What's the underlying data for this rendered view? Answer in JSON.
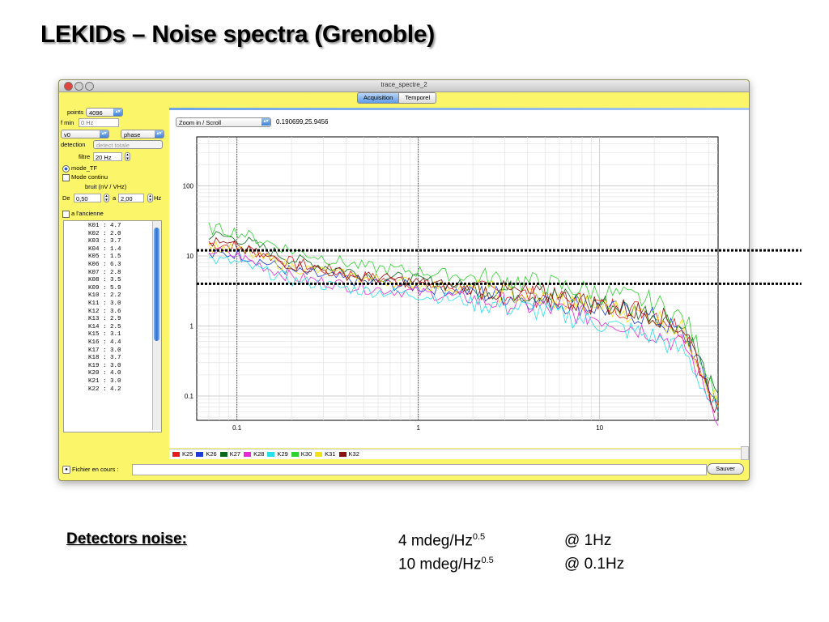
{
  "slide": {
    "title": "LEKIDs – Noise spectra (Grenoble)"
  },
  "window": {
    "title": "trace_spectre_2",
    "tabs": [
      {
        "label": "Acquisition",
        "active": true
      },
      {
        "label": "Temporel",
        "active": false
      }
    ]
  },
  "controls": {
    "points_label": "points",
    "points_value": "4096",
    "fmin_label": "f min",
    "fmin_placeholder": "0 Hz",
    "channel_value": "v0",
    "mode_value": "phase",
    "detection_label": "detection",
    "detection_value": "detect totale",
    "filtre_label": "filtre",
    "filtre_value": "20 Hz",
    "mode_tf_label": "mode_TF",
    "mode_continu_label": "Mode continu",
    "bruit_label": "bruit (nV / VHz)",
    "de_label": "De",
    "de_value": "0,50",
    "a_label": "a",
    "a_value": "2,00",
    "hz_label": "Hz",
    "ancienne_label": "a l'ancienne"
  },
  "detectors": [
    {
      "id": "K01 :",
      "value": "4.7"
    },
    {
      "id": "K02 :",
      "value": "2.0"
    },
    {
      "id": "K03 :",
      "value": "3.7"
    },
    {
      "id": "K04 :",
      "value": "1.4"
    },
    {
      "id": "K05 :",
      "value": "1.5"
    },
    {
      "id": "K06 :",
      "value": "6.3"
    },
    {
      "id": "K07 :",
      "value": "2.8"
    },
    {
      "id": "K08 :",
      "value": "3.5"
    },
    {
      "id": "K09 :",
      "value": "5.9"
    },
    {
      "id": "K10 :",
      "value": "2.2"
    },
    {
      "id": "K11 :",
      "value": "3.0"
    },
    {
      "id": "K12 :",
      "value": "3.6"
    },
    {
      "id": "K13 :",
      "value": "2.9"
    },
    {
      "id": "K14 :",
      "value": "2.5"
    },
    {
      "id": "K15 :",
      "value": "3.1"
    },
    {
      "id": "K16 :",
      "value": "4.4"
    },
    {
      "id": "K17 :",
      "value": "3.0"
    },
    {
      "id": "K18 :",
      "value": "3.7"
    },
    {
      "id": "K19 :",
      "value": "3.0"
    },
    {
      "id": "K20 :",
      "value": "4.0"
    },
    {
      "id": "K21 :",
      "value": "3.0"
    },
    {
      "id": "K22 :",
      "value": "4.2"
    }
  ],
  "plot": {
    "zoom_value": "Zoom in / Scroll",
    "coord_readout": "0.190699,25.9456"
  },
  "chart_data": {
    "type": "line",
    "xscale": "log",
    "yscale": "log",
    "xlim": [
      0.06,
      45
    ],
    "ylim": [
      0.045,
      500
    ],
    "xticks": [
      0.1,
      1,
      10
    ],
    "xtick_labels": [
      "0.1",
      "1",
      "10"
    ],
    "yticks": [
      0.1,
      1,
      10,
      100
    ],
    "ytick_labels": [
      "0.1",
      "1",
      "10",
      "100"
    ],
    "grid": true,
    "markers_x": [
      0.1,
      1
    ],
    "reference_lines_y": [
      12,
      4
    ],
    "legend_position": "bottom",
    "series": [
      {
        "name": "K25",
        "color": "#e41a1c",
        "x": [
          0.07,
          0.1,
          0.2,
          0.5,
          1,
          2,
          5,
          10,
          20,
          30,
          45
        ],
        "y": [
          15,
          14,
          8,
          5,
          4,
          3.2,
          2.6,
          2,
          1.6,
          0.8,
          0.06
        ]
      },
      {
        "name": "K26",
        "color": "#1f3bd6",
        "x": [
          0.07,
          0.1,
          0.2,
          0.5,
          1,
          2,
          5,
          10,
          20,
          30,
          45
        ],
        "y": [
          10,
          11,
          6,
          4.2,
          3.6,
          3,
          2.3,
          1.8,
          1.3,
          0.7,
          0.07
        ]
      },
      {
        "name": "K27",
        "color": "#0a6a1a",
        "x": [
          0.07,
          0.1,
          0.2,
          0.5,
          1,
          2,
          5,
          10,
          20,
          30,
          45
        ],
        "y": [
          20,
          18,
          9,
          5.5,
          4.5,
          3.6,
          2.8,
          2.1,
          1.5,
          0.9,
          0.08
        ]
      },
      {
        "name": "K28",
        "color": "#e82ad6",
        "x": [
          0.07,
          0.1,
          0.2,
          0.5,
          1,
          2,
          5,
          10,
          20,
          30,
          45
        ],
        "y": [
          12,
          10,
          5,
          3.5,
          3,
          2.4,
          1.8,
          1.3,
          0.8,
          0.5,
          0.05
        ]
      },
      {
        "name": "K29",
        "color": "#26e0e8",
        "x": [
          0.07,
          0.1,
          0.2,
          0.5,
          1,
          2,
          5,
          10,
          20,
          30,
          45
        ],
        "y": [
          9,
          8,
          4.5,
          3.2,
          2.8,
          2.2,
          1.6,
          1.1,
          0.7,
          0.4,
          0.05
        ]
      },
      {
        "name": "K30",
        "color": "#2fd12f",
        "x": [
          0.07,
          0.1,
          0.2,
          0.5,
          1,
          2,
          5,
          10,
          20,
          30,
          45
        ],
        "y": [
          25,
          22,
          12,
          7,
          6,
          5,
          4,
          3,
          2.2,
          1.2,
          0.1
        ]
      },
      {
        "name": "K31",
        "color": "#f2e21a",
        "x": [
          0.07,
          0.1,
          0.2,
          0.5,
          1,
          2,
          5,
          10,
          20,
          30,
          45
        ],
        "y": [
          14,
          12,
          7,
          4.8,
          4,
          3.3,
          2.5,
          1.9,
          1.4,
          0.8,
          0.07
        ]
      },
      {
        "name": "K32",
        "color": "#8b1010",
        "x": [
          0.07,
          0.1,
          0.2,
          0.5,
          1,
          2,
          5,
          10,
          20,
          30,
          45
        ],
        "y": [
          16,
          13,
          7.5,
          5,
          4.2,
          3.4,
          2.7,
          2,
          1.5,
          0.85,
          0.06
        ]
      }
    ]
  },
  "bottom": {
    "file_label": "Fichier en cours :",
    "save_label": "Sauver"
  },
  "summary": {
    "label": "Detectors noise:",
    "lines": [
      {
        "value": "4   mdeg/Hz",
        "exp": "0.5",
        "at": "@  1Hz"
      },
      {
        "value": "10 mdeg/Hz",
        "exp": "0.5",
        "at": "@  0.1Hz"
      }
    ]
  }
}
